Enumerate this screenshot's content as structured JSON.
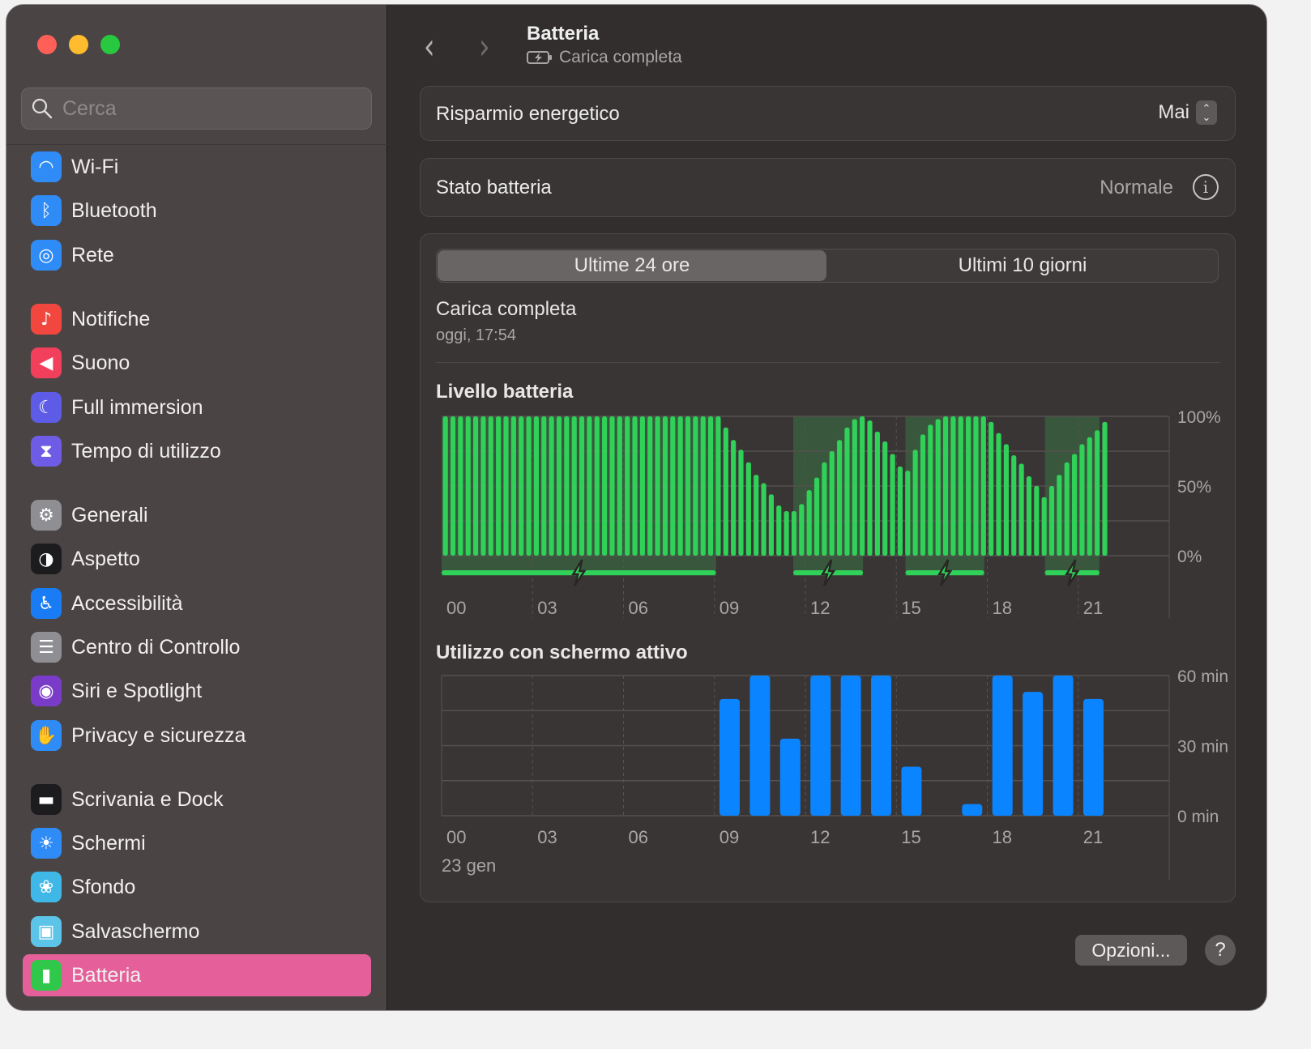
{
  "window": {
    "controls": {
      "close": "#fe5f57",
      "minimize": "#febc2e",
      "zoom": "#28c840"
    }
  },
  "sidebar": {
    "search_placeholder": "Cerca",
    "items": [
      {
        "label": "Wi-Fi",
        "icon": "wifi-icon",
        "glyph": "◠",
        "color": "#2f8cf7"
      },
      {
        "label": "Bluetooth",
        "icon": "bluetooth-icon",
        "glyph": "ᛒ",
        "color": "#2f8cf7"
      },
      {
        "label": "Rete",
        "icon": "globe-icon",
        "glyph": "◎",
        "color": "#2f8cf7"
      },
      {
        "label": "Notifiche",
        "icon": "bell-icon",
        "glyph": "♪",
        "color": "#f2473f"
      },
      {
        "label": "Suono",
        "icon": "speaker-icon",
        "glyph": "◀",
        "color": "#f2405c"
      },
      {
        "label": "Full immersion",
        "icon": "moon-icon",
        "glyph": "☾",
        "color": "#5e5ce6"
      },
      {
        "label": "Tempo di utilizzo",
        "icon": "hourglass-icon",
        "glyph": "⧗",
        "color": "#6e5ce6"
      },
      {
        "label": "Generali",
        "icon": "gear-icon",
        "glyph": "⚙",
        "color": "#8e8e93"
      },
      {
        "label": "Aspetto",
        "icon": "appearance-icon",
        "glyph": "◑",
        "color": "#1c1c1e"
      },
      {
        "label": "Accessibilità",
        "icon": "accessibility-icon",
        "glyph": "♿",
        "color": "#1a7cf5"
      },
      {
        "label": "Centro di Controllo",
        "icon": "control-center-icon",
        "glyph": "☰",
        "color": "#8e8e93"
      },
      {
        "label": "Siri e Spotlight",
        "icon": "siri-icon",
        "glyph": "◉",
        "color": "#7a3cc8"
      },
      {
        "label": "Privacy e sicurezza",
        "icon": "hand-icon",
        "glyph": "✋",
        "color": "#2f8cf7"
      },
      {
        "label": "Scrivania e Dock",
        "icon": "dock-icon",
        "glyph": "▬",
        "color": "#1c1c1e"
      },
      {
        "label": "Schermi",
        "icon": "sun-icon",
        "glyph": "☀",
        "color": "#2f8cf7"
      },
      {
        "label": "Sfondo",
        "icon": "flower-icon",
        "glyph": "❀",
        "color": "#3fb8e8"
      },
      {
        "label": "Salvaschermo",
        "icon": "screensaver-icon",
        "glyph": "▣",
        "color": "#5cc4e8"
      },
      {
        "label": "Batteria",
        "icon": "battery-icon",
        "glyph": "▮",
        "color": "#30c84a",
        "selected": true
      }
    ],
    "selected_color": "#e5609a"
  },
  "header": {
    "title": "Batteria",
    "subtitle": "Carica completa",
    "status_icon": "battery-charging-icon"
  },
  "settings": {
    "low_power": {
      "label": "Risparmio energetico",
      "value": "Mai"
    },
    "battery_health": {
      "label": "Stato batteria",
      "value": "Normale"
    }
  },
  "usage": {
    "tabs": [
      {
        "label": "Ultime 24 ore",
        "selected": true
      },
      {
        "label": "Ultimi 10 giorni",
        "selected": false
      }
    ],
    "charge_status": "Carica completa",
    "charge_time": "oggi, 17:54",
    "date_label": "23 gen"
  },
  "footer": {
    "options_label": "Opzioni...",
    "help_label": "?"
  },
  "chart_data": [
    {
      "type": "bar",
      "title": "Livello batteria",
      "color": "#30d158",
      "x_ticks": [
        "00",
        "03",
        "06",
        "09",
        "12",
        "15",
        "18",
        "21"
      ],
      "y_ticks": [
        "100%",
        "50%",
        "0%"
      ],
      "ylim": [
        0,
        100
      ],
      "grid": true,
      "values": [
        100,
        100,
        100,
        100,
        100,
        100,
        100,
        100,
        100,
        100,
        100,
        100,
        100,
        100,
        100,
        100,
        100,
        100,
        100,
        100,
        100,
        100,
        100,
        100,
        100,
        100,
        100,
        100,
        100,
        100,
        100,
        100,
        100,
        100,
        100,
        100,
        100,
        92,
        83,
        76,
        67,
        58,
        52,
        44,
        36,
        32,
        32,
        37,
        47,
        56,
        67,
        75,
        83,
        92,
        98,
        100,
        97,
        89,
        82,
        73,
        64,
        61,
        76,
        87,
        94,
        98,
        100,
        100,
        100,
        100,
        100,
        100,
        96,
        88,
        80,
        72,
        66,
        57,
        50,
        42,
        50,
        58,
        67,
        73,
        80,
        85,
        90,
        96
      ],
      "charging_periods": [
        [
          0,
          9.05
        ],
        [
          11.6,
          13.9
        ],
        [
          15.3,
          17.9
        ],
        [
          19.9,
          21.7
        ]
      ]
    },
    {
      "type": "bar",
      "title": "Utilizzo con schermo attivo",
      "color": "#0a84ff",
      "categories": [
        "00",
        "01",
        "02",
        "03",
        "04",
        "05",
        "06",
        "07",
        "08",
        "09",
        "10",
        "11",
        "12",
        "13",
        "14",
        "15",
        "16",
        "17",
        "18",
        "19",
        "20",
        "21",
        "22",
        "23"
      ],
      "x_ticks": [
        "00",
        "03",
        "06",
        "09",
        "12",
        "15",
        "18",
        "21"
      ],
      "y_ticks": [
        "60 min",
        "30 min",
        "0 min"
      ],
      "ylim": [
        0,
        60
      ],
      "grid": true,
      "values": [
        0,
        0,
        0,
        0,
        0,
        0,
        0,
        0,
        0,
        50,
        60,
        33,
        60,
        60,
        60,
        21,
        0,
        5,
        60,
        53,
        60,
        50,
        0,
        0
      ]
    }
  ]
}
